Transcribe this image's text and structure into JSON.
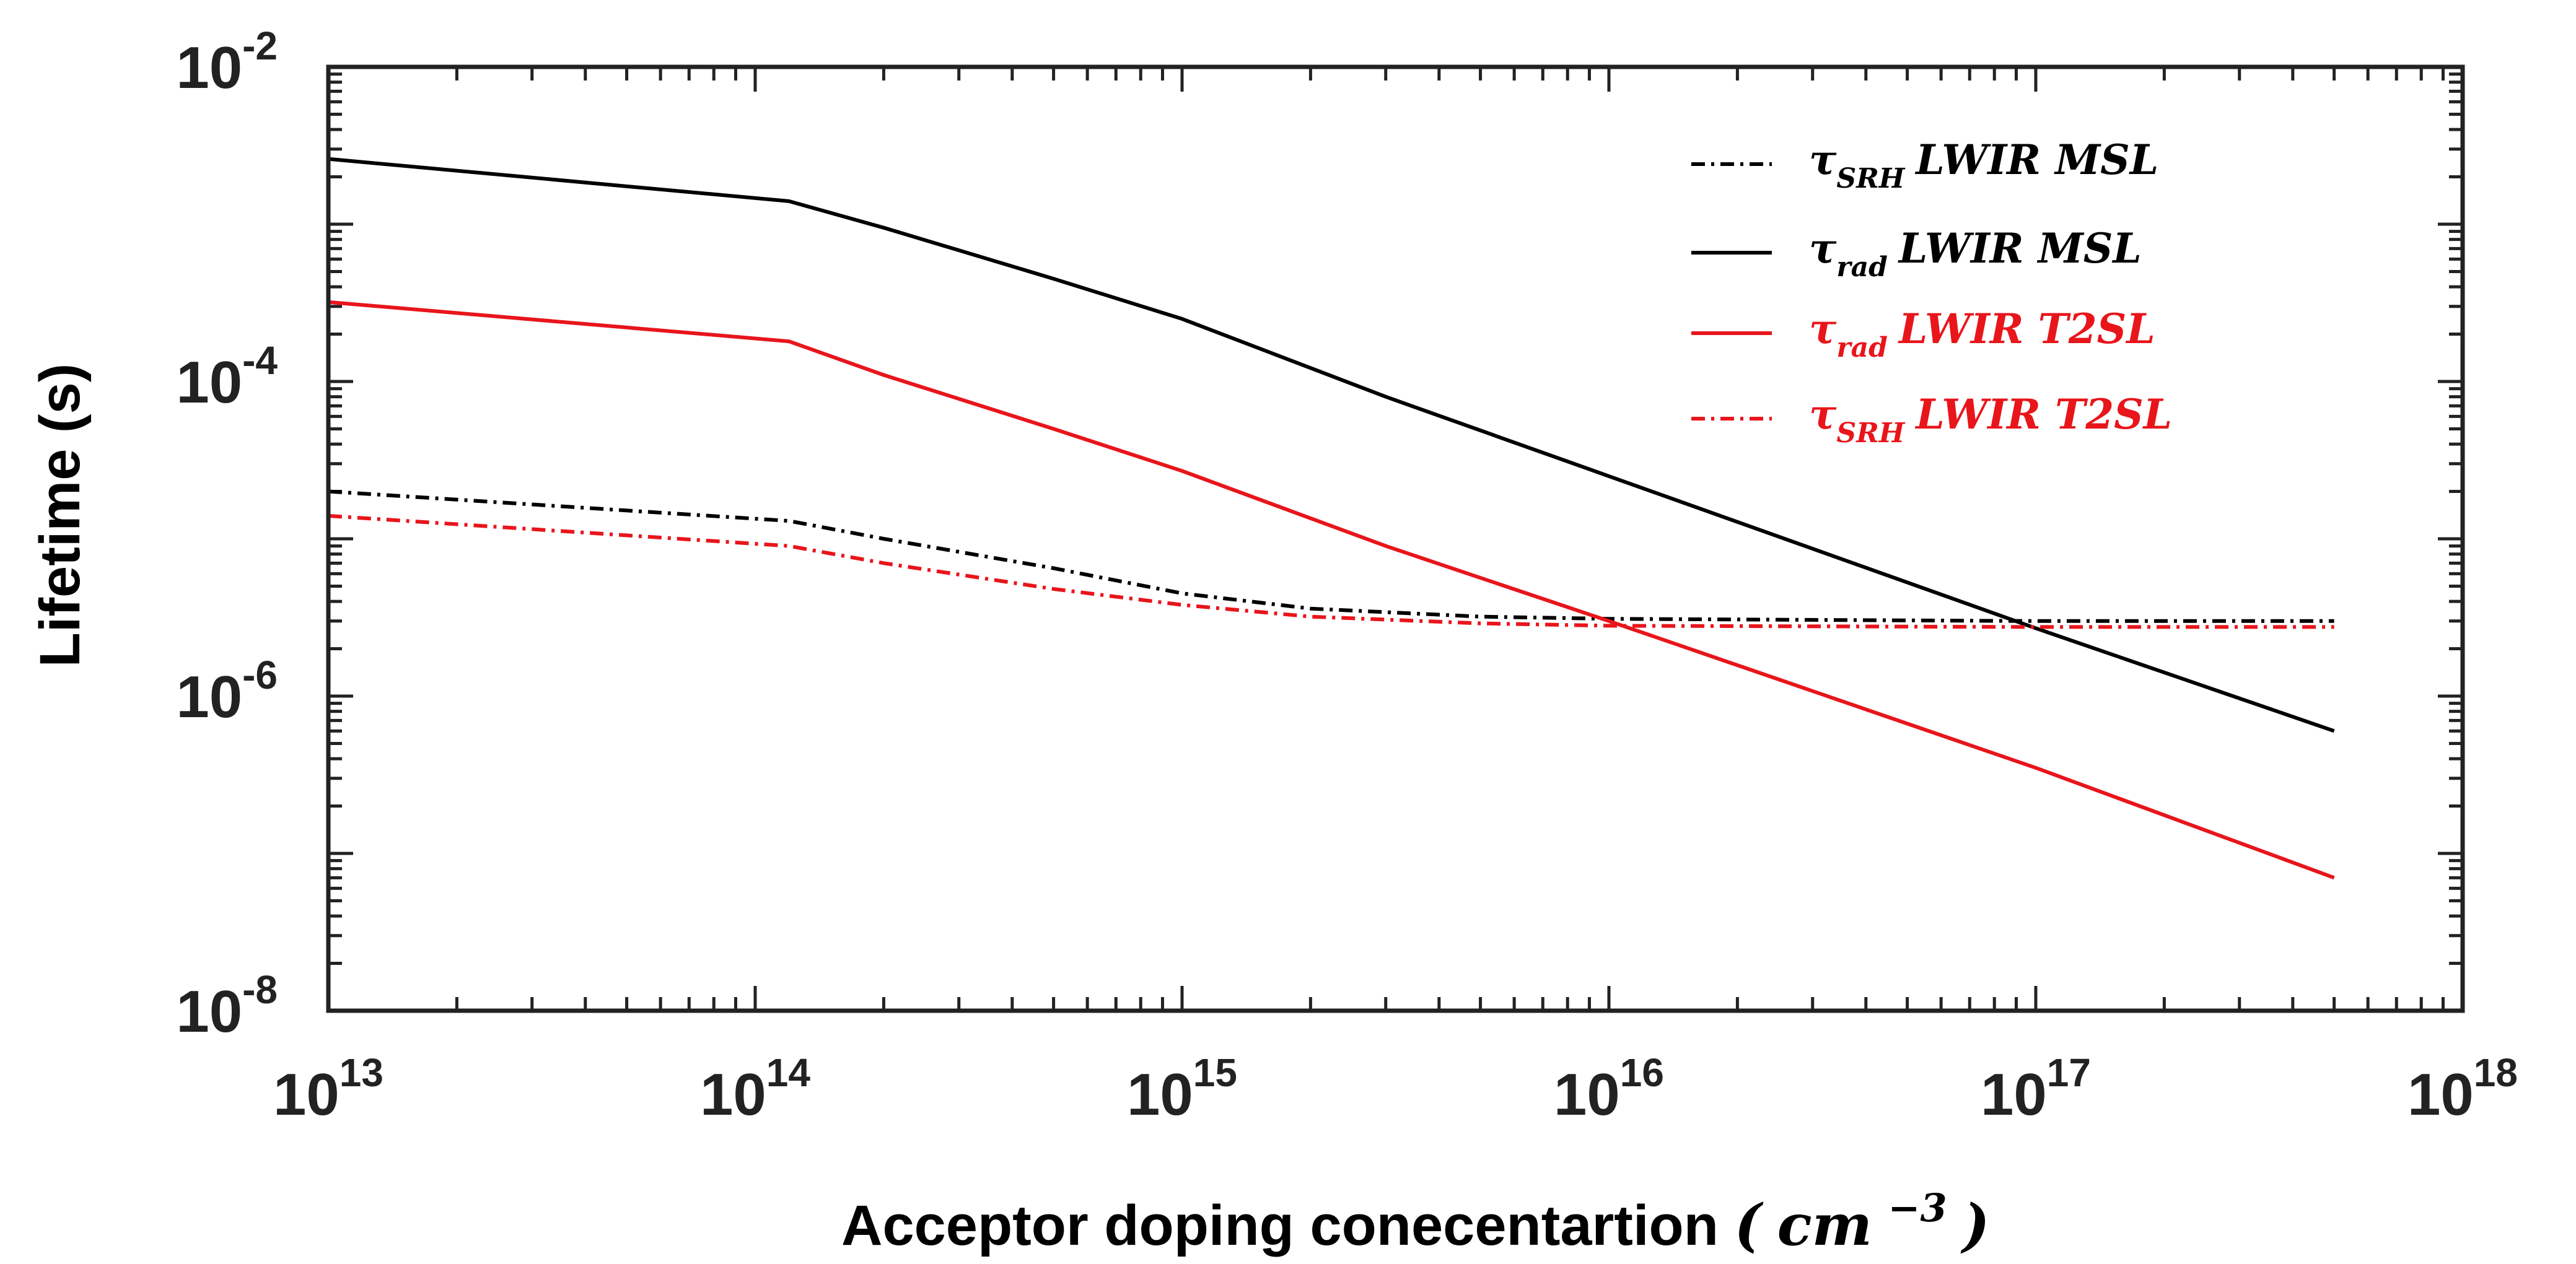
{
  "chart_data": {
    "type": "line",
    "title": "",
    "xlabel": "Acceptor doping conecentartion",
    "xlabel_unit": {
      "base": "cm",
      "exponent": "−3",
      "open": "(",
      "close": ")"
    },
    "ylabel": "Lifetime (s)",
    "xscale": "log",
    "yscale": "log",
    "xlim": [
      10000000000000.0,
      1e+18
    ],
    "ylim": [
      1e-08,
      0.01
    ],
    "grid": false,
    "legend_position": "top-right",
    "x_ticks": [
      {
        "value": 10000000000000.0,
        "base": "10",
        "exp": "13"
      },
      {
        "value": 100000000000000.0,
        "base": "10",
        "exp": "14"
      },
      {
        "value": 1000000000000000.0,
        "base": "10",
        "exp": "15"
      },
      {
        "value": 1e+16,
        "base": "10",
        "exp": "16"
      },
      {
        "value": 1e+17,
        "base": "10",
        "exp": "17"
      },
      {
        "value": 1e+18,
        "base": "10",
        "exp": "18"
      }
    ],
    "y_ticks": [
      {
        "value": 1e-08,
        "base": "10",
        "exp": "-8"
      },
      {
        "value": 1e-06,
        "base": "10",
        "exp": "-6"
      },
      {
        "value": 0.0001,
        "base": "10",
        "exp": "-4"
      },
      {
        "value": 0.01,
        "base": "10",
        "exp": "-2"
      }
    ],
    "series": [
      {
        "key": "srh-msl",
        "name": "τSRH LWIR MSL",
        "symbol": "τ",
        "subscript": "SRH",
        "label": "LWIR MSL",
        "color": "#000000",
        "style": "dashdot",
        "x": [
          10000000000000.0,
          120000000000000.0,
          200000000000000.0,
          500000000000000.0,
          1000000000000000.0,
          2000000000000000.0,
          5000000000000000.0,
          1e+16,
          1e+17,
          5e+17
        ],
        "y": [
          2e-05,
          1.3e-05,
          1e-05,
          6.5e-06,
          4.5e-06,
          3.6e-06,
          3.2e-06,
          3.1e-06,
          3e-06,
          3e-06
        ]
      },
      {
        "key": "rad-msl",
        "name": "τrad LWIR MSL",
        "symbol": "τ",
        "subscript": "rad",
        "label": "LWIR MSL",
        "color": "#000000",
        "style": "solid",
        "x": [
          10000000000000.0,
          120000000000000.0,
          200000000000000.0,
          500000000000000.0,
          1000000000000000.0,
          3000000000000000.0,
          1e+16,
          1e+17,
          5e+17
        ],
        "y": [
          0.0026,
          0.0014,
          0.00095,
          0.00045,
          0.00025,
          8e-05,
          2.5e-05,
          2.7e-06,
          6e-07
        ]
      },
      {
        "key": "rad-t2sl",
        "name": "τrad LWIR T2SL",
        "symbol": "τ",
        "subscript": "rad",
        "label": "LWIR T2SL",
        "color": "#e8151b",
        "style": "solid",
        "x": [
          10000000000000.0,
          120000000000000.0,
          200000000000000.0,
          500000000000000.0,
          1000000000000000.0,
          3000000000000000.0,
          1e+16,
          1e+17,
          5e+17
        ],
        "y": [
          0.00032,
          0.00018,
          0.00011,
          5e-05,
          2.7e-05,
          9e-06,
          3e-06,
          3.5e-07,
          7e-08
        ]
      },
      {
        "key": "srh-t2sl",
        "name": "τSRH LWIR T2SL",
        "symbol": "τ",
        "subscript": "SRH",
        "label": "LWIR T2SL",
        "color": "#e8151b",
        "style": "dashdot",
        "x": [
          10000000000000.0,
          120000000000000.0,
          200000000000000.0,
          500000000000000.0,
          1000000000000000.0,
          2000000000000000.0,
          5000000000000000.0,
          1e+16,
          1e+17,
          5e+17
        ],
        "y": [
          1.4e-05,
          9e-06,
          7e-06,
          4.8e-06,
          3.8e-06,
          3.2e-06,
          2.9e-06,
          2.8e-06,
          2.75e-06,
          2.75e-06
        ]
      }
    ]
  }
}
